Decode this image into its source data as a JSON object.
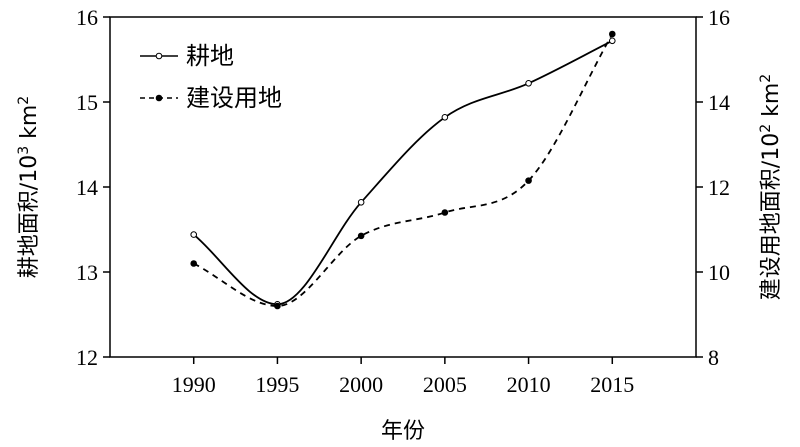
{
  "chart_data": {
    "type": "line",
    "x": [
      1990,
      1995,
      2000,
      2005,
      2010,
      2015
    ],
    "xlabel": "年份",
    "xlim": [
      1985,
      2020
    ],
    "series": [
      {
        "name": "耕地",
        "axis": "left",
        "line_style": "solid",
        "marker": "open-circle",
        "values": [
          13.44,
          12.62,
          13.82,
          14.82,
          15.22,
          15.72
        ]
      },
      {
        "name": "建设用地",
        "axis": "right",
        "line_style": "dashed",
        "marker": "filled-circle",
        "values": [
          10.2,
          9.2,
          10.85,
          11.4,
          12.15,
          15.6
        ]
      }
    ],
    "y_left": {
      "label_main": "耕地面积/10",
      "label_sup": "3",
      "label_unit": " km",
      "label_unit_sup": "2",
      "ylim": [
        12,
        16
      ],
      "ticks": [
        12,
        13,
        14,
        15,
        16
      ]
    },
    "y_right": {
      "label_main": "建设用地面积/10",
      "label_sup": "2",
      "label_unit": " km",
      "label_unit_sup": "2",
      "ylim": [
        8,
        16
      ],
      "ticks": [
        8,
        10,
        12,
        14,
        16
      ]
    },
    "x_ticks": [
      1990,
      1995,
      2000,
      2005,
      2010,
      2015
    ],
    "legend_position": "top-left",
    "grid": false
  }
}
